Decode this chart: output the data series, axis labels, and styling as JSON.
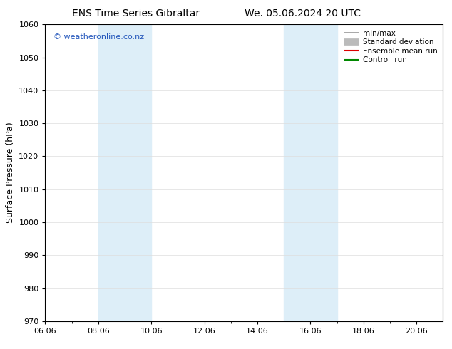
{
  "title_left": "ENS Time Series Gibraltar",
  "title_right": "We. 05.06.2024 20 UTC",
  "ylabel": "Surface Pressure (hPa)",
  "ylim": [
    970,
    1060
  ],
  "yticks": [
    970,
    980,
    990,
    1000,
    1010,
    1020,
    1030,
    1040,
    1050,
    1060
  ],
  "xlim": [
    0,
    15
  ],
  "xtick_labels": [
    "06.06",
    "08.06",
    "10.06",
    "12.06",
    "14.06",
    "16.06",
    "18.06",
    "20.06"
  ],
  "xtick_positions": [
    0,
    2,
    4,
    6,
    8,
    10,
    12,
    14
  ],
  "shaded_bands": [
    {
      "x_start": 2.0,
      "x_end": 4.0
    },
    {
      "x_start": 9.0,
      "x_end": 11.0
    }
  ],
  "band_color": "#ddeef8",
  "watermark": "© weatheronline.co.nz",
  "watermark_color": "#2255bb",
  "legend_items": [
    {
      "label": "min/max",
      "color": "#999999",
      "lw": 1.2
    },
    {
      "label": "Standard deviation",
      "color": "#bbbbbb",
      "lw": 7
    },
    {
      "label": "Ensemble mean run",
      "color": "#dd0000",
      "lw": 1.5
    },
    {
      "label": "Controll run",
      "color": "#008800",
      "lw": 1.5
    }
  ],
  "bg_color": "#ffffff",
  "grid_color": "#dddddd",
  "title_fontsize": 10,
  "ylabel_fontsize": 9,
  "tick_fontsize": 8,
  "legend_fontsize": 7.5,
  "watermark_fontsize": 8
}
